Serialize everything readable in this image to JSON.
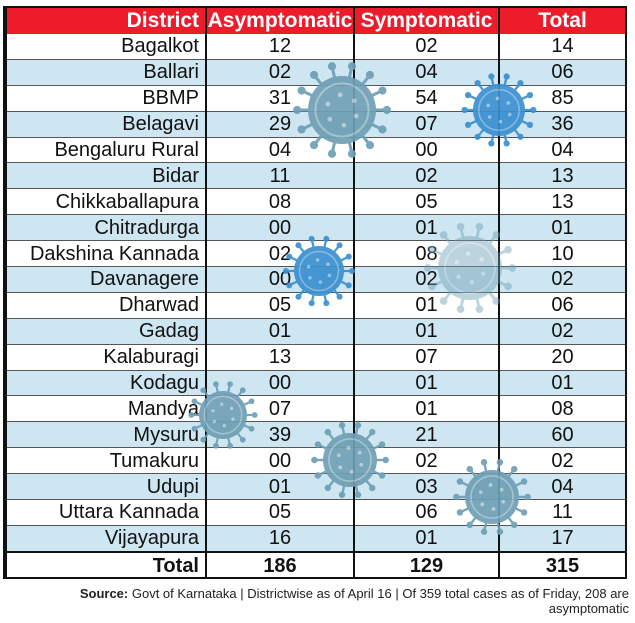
{
  "headers": {
    "district": "District",
    "asymptomatic": "Asymptomatic",
    "symptomatic": "Symptomatic",
    "total": "Total"
  },
  "rows": [
    {
      "district": "Bagalkot",
      "asymptomatic": "12",
      "symptomatic": "02",
      "total": "14"
    },
    {
      "district": "Ballari",
      "asymptomatic": "02",
      "symptomatic": "04",
      "total": "06"
    },
    {
      "district": "BBMP",
      "asymptomatic": "31",
      "symptomatic": "54",
      "total": "85"
    },
    {
      "district": "Belagavi",
      "asymptomatic": "29",
      "symptomatic": "07",
      "total": "36"
    },
    {
      "district": "Bengaluru Rural",
      "asymptomatic": "04",
      "symptomatic": "00",
      "total": "04"
    },
    {
      "district": "Bidar",
      "asymptomatic": "11",
      "symptomatic": "02",
      "total": "13"
    },
    {
      "district": "Chikkaballapura",
      "asymptomatic": "08",
      "symptomatic": "05",
      "total": "13"
    },
    {
      "district": "Chitradurga",
      "asymptomatic": "00",
      "symptomatic": "01",
      "total": "01"
    },
    {
      "district": "Dakshina Kannada",
      "asymptomatic": "02",
      "symptomatic": "08",
      "total": "10"
    },
    {
      "district": "Davanagere",
      "asymptomatic": "00",
      "symptomatic": "02",
      "total": "02"
    },
    {
      "district": "Dharwad",
      "asymptomatic": "05",
      "symptomatic": "01",
      "total": "06"
    },
    {
      "district": "Gadag",
      "asymptomatic": "01",
      "symptomatic": "01",
      "total": "02"
    },
    {
      "district": "Kalaburagi",
      "asymptomatic": "13",
      "symptomatic": "07",
      "total": "20"
    },
    {
      "district": "Kodagu",
      "asymptomatic": "00",
      "symptomatic": "01",
      "total": "01"
    },
    {
      "district": "Mandya",
      "asymptomatic": "07",
      "symptomatic": "01",
      "total": "08"
    },
    {
      "district": "Mysuru",
      "asymptomatic": "39",
      "symptomatic": "21",
      "total": "60"
    },
    {
      "district": "Tumakuru",
      "asymptomatic": "00",
      "symptomatic": "02",
      "total": "02"
    },
    {
      "district": "Udupi",
      "asymptomatic": "01",
      "symptomatic": "03",
      "total": "04"
    },
    {
      "district": "Uttara Kannada",
      "asymptomatic": "05",
      "symptomatic": "06",
      "total": "11"
    },
    {
      "district": "Vijayapura",
      "asymptomatic": "16",
      "symptomatic": "01",
      "total": "17"
    }
  ],
  "totals": {
    "label": "Total",
    "asymptomatic": "186",
    "symptomatic": "129",
    "total": "315"
  },
  "source": {
    "label": "Source:",
    "text": "Govt of Karnataka | Districtwise as of April 16 | Of 359 total cases as of Friday, 208 are asymptomatic"
  },
  "colors": {
    "header_bg": "#ec1c2b",
    "alt_row_bg": "#cde6f1",
    "virus_blue": "#3a8fd0",
    "virus_grey": "#6e9fb5"
  }
}
